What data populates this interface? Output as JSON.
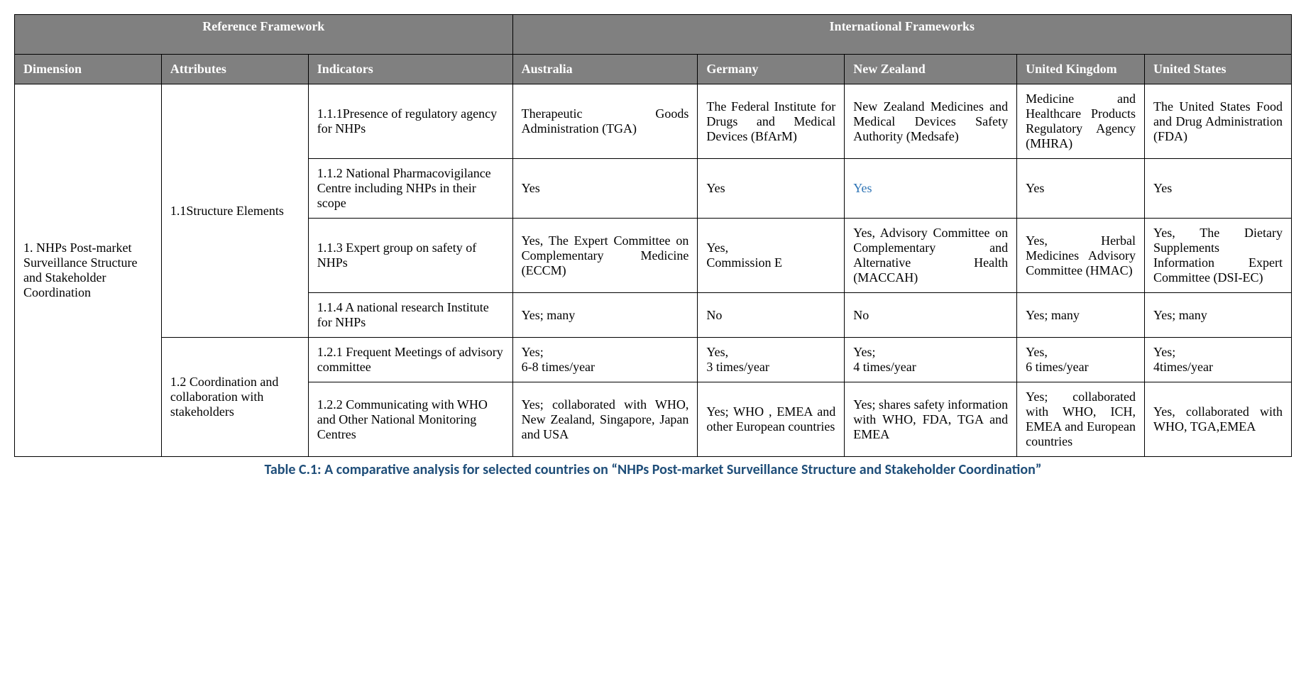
{
  "table": {
    "superheaders": {
      "ref": "Reference Framework",
      "intl": "International Frameworks"
    },
    "columns": {
      "dimension": "Dimension",
      "attributes": "Attributes",
      "indicators": "Indicators",
      "australia": "Australia",
      "germany": "Germany",
      "newzealand": "New Zealand",
      "uk": "United Kingdom",
      "us": "United States"
    },
    "dimension": "1. NHPs Post-market Surveillance Structure and Stakeholder Coordination",
    "attr1": "1.1Structure Elements",
    "attr2": "1.2  Coordination and collaboration with stakeholders",
    "rows": [
      {
        "indicator": "1.1.1Presence of regulatory agency for NHPs",
        "au": "Therapeutic Goods Administration (TGA)",
        "de": "The Federal Institute for Drugs and Medical Devices (BfArM)",
        "nz": "New Zealand Medicines and Medical Devices Safety Authority (Medsafe)",
        "uk": "Medicine and Healthcare Products Regulatory Agency (MHRA)",
        "us": "The United States Food and Drug Administration (FDA)"
      },
      {
        "indicator": "1.1.2 National Pharmacovigilance Centre including NHPs in their scope",
        "au": "Yes",
        "de": "Yes",
        "nz": "Yes",
        "uk": "Yes",
        "us": "Yes"
      },
      {
        "indicator": "1.1.3 Expert group  on safety of NHPs",
        "au": "Yes, The Expert Committee on Complementary Medicine (ECCM)",
        "de": "Yes,\nCommission E",
        "nz": "Yes, Advisory Committee on Complementary and Alternative Health (MACCAH)",
        "uk": "Yes, Herbal Medicines Advisory Committee (HMAC)",
        "us": "Yes, The Dietary Supplements Information Expert Committee (DSI-EC)"
      },
      {
        "indicator": "1.1.4 A national research Institute for NHPs",
        "au": "Yes; many",
        "de": "No",
        "nz": "No",
        "uk": "Yes; many",
        "us": "Yes; many"
      },
      {
        "indicator": "1.2.1 Frequent Meetings of advisory committee",
        "au": "Yes;\n 6-8 times/year",
        "de": "Yes,\n3 times/year",
        "nz": "Yes;\n4 times/year",
        "uk": "Yes,\n6 times/year",
        "us": "Yes;\n4times/year"
      },
      {
        "indicator": "1.2.2 Communicating with WHO and Other National Monitoring Centres",
        "au": "Yes; collaborated with WHO, New Zealand, Singapore, Japan and USA",
        "de": "Yes; WHO , EMEA and other European countries",
        "nz": "Yes; shares safety information with WHO, FDA, TGA and EMEA",
        "uk": "Yes; collaborated with WHO, ICH, EMEA and European countries",
        "us": "Yes, collaborated with WHO, TGA,EMEA"
      }
    ]
  },
  "caption": "Table C.1: A comparative analysis for selected countries on “NHPs Post-market Surveillance Structure and Stakeholder Coordination”"
}
